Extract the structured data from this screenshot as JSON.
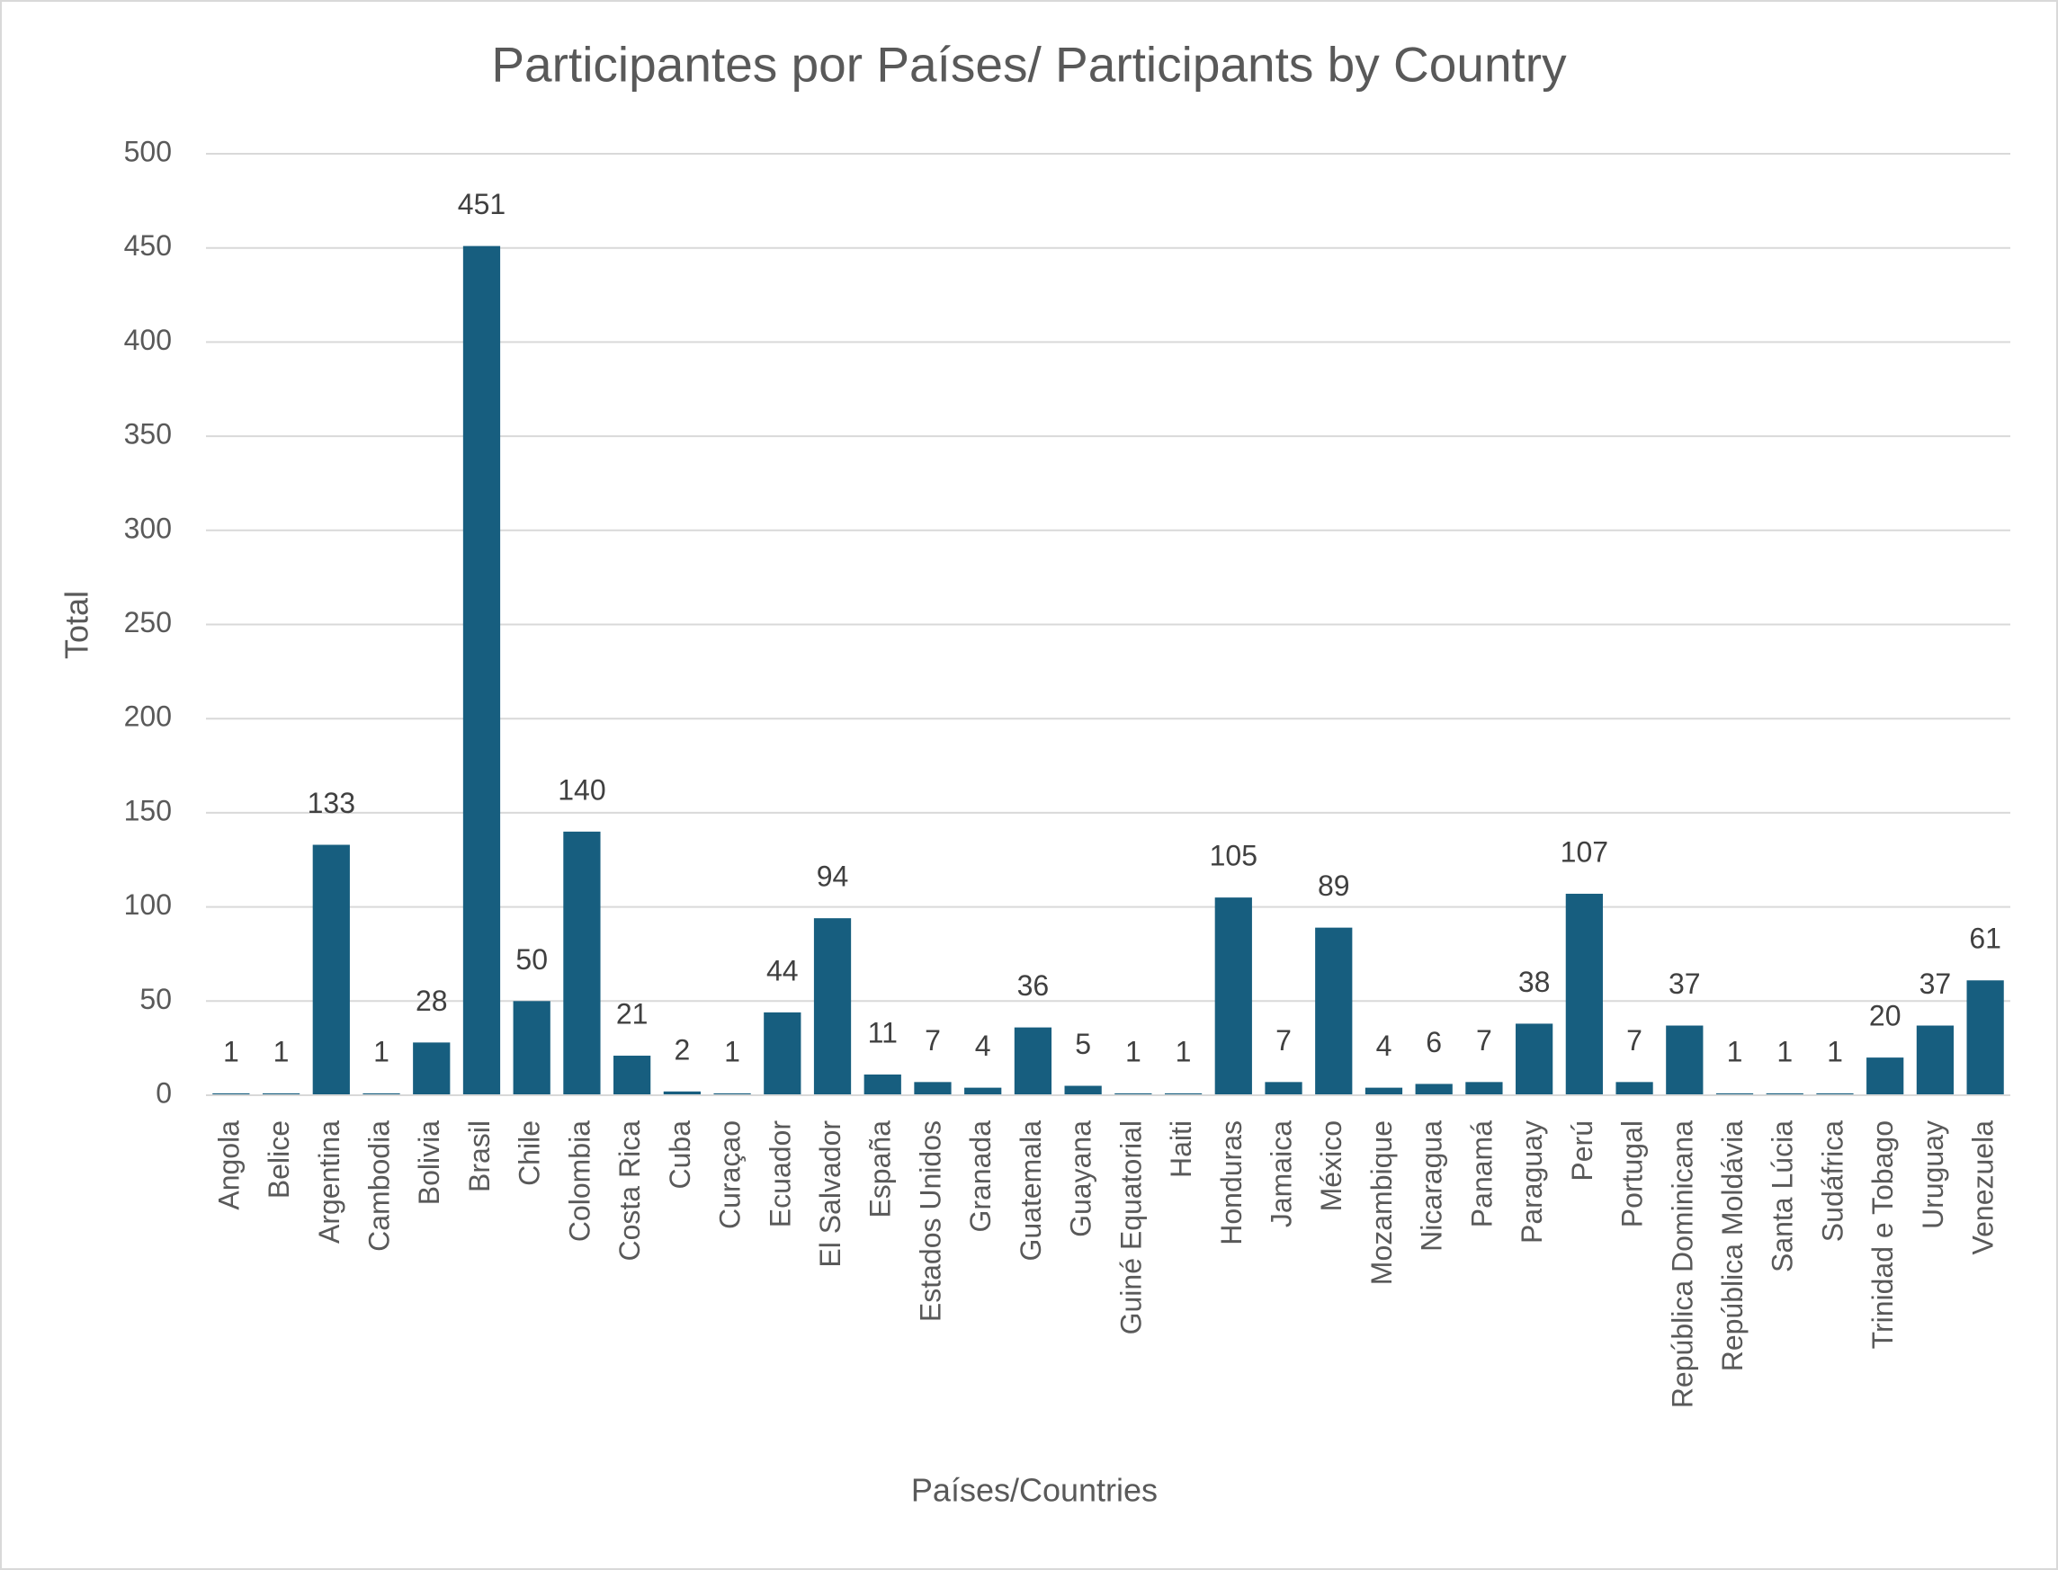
{
  "chart_data": {
    "type": "bar",
    "title": "Participantes por Países/ Participants by Country",
    "x_label": "Países/Countries",
    "y_label": "Total",
    "categories": [
      "Angola",
      "Belice",
      "Argentina",
      "Cambodia",
      "Bolivia",
      "Brasil",
      "Chile",
      "Colombia",
      "Costa Rica",
      "Cuba",
      "Curaçao",
      "Ecuador",
      "El Salvador",
      "España",
      "Estados Unidos",
      "Granada",
      "Guatemala",
      "Guayana",
      "Guiné Equatorial",
      "Haiti",
      "Honduras",
      "Jamaica",
      "México",
      "Mozambique",
      "Nicaragua",
      "Panamá",
      "Paraguay",
      "Perú",
      "Portugal",
      "República Dominicana",
      "República Moldávia",
      "Santa Lúcia",
      "Sudáfrica",
      "Trinidad e Tobago",
      "Uruguay",
      "Venezuela"
    ],
    "values": [
      1,
      1,
      133,
      1,
      28,
      451,
      50,
      140,
      21,
      2,
      1,
      44,
      94,
      11,
      7,
      4,
      36,
      5,
      1,
      1,
      105,
      7,
      89,
      4,
      6,
      7,
      38,
      107,
      7,
      37,
      1,
      1,
      1,
      20,
      37,
      61
    ],
    "color": "#175e7f",
    "ylim": [
      0,
      500
    ],
    "yticks": [
      0,
      50,
      100,
      150,
      200,
      250,
      300,
      350,
      400,
      450,
      500
    ],
    "grid": true
  }
}
